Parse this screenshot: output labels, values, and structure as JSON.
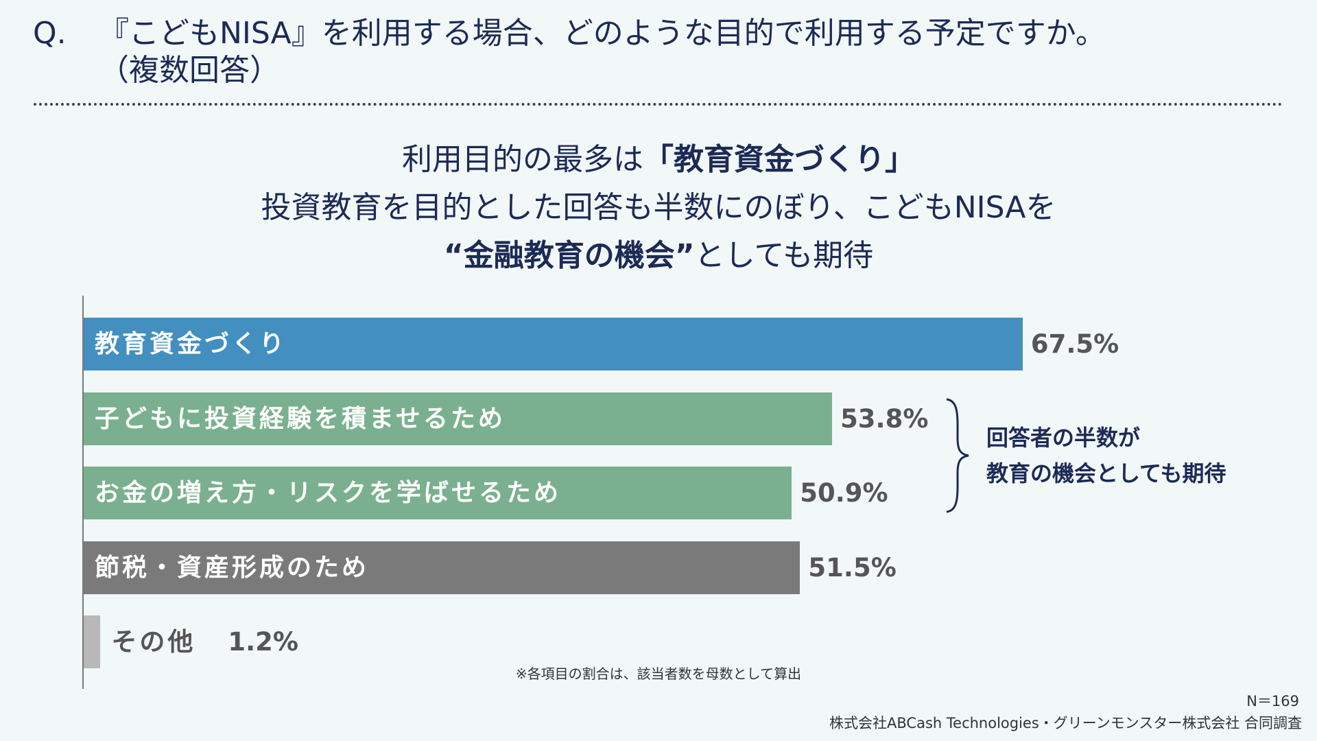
{
  "question": {
    "prefix": "Q.",
    "line1": "『こどもNISA』を利用する場合、どのような目的で利用する予定ですか。",
    "line2": "（複数回答）"
  },
  "headline": {
    "line1_pre": "利用目的の最多は",
    "line1_bold": "「教育資金づくり」",
    "line2": "投資教育を目的とした回答も半数にのぼり、こどもNISAを",
    "line3_bold": "“金融教育の機会”",
    "line3_post": "としても期待"
  },
  "chart_data": {
    "type": "bar",
    "orientation": "horizontal",
    "categories": [
      "教育資金づくり",
      "子どもに投資経験を積ませるため",
      "お金の増え方・リスクを学ばせるため",
      "節税・資産形成のため",
      "その他"
    ],
    "values": [
      67.5,
      53.8,
      50.9,
      51.5,
      1.2
    ],
    "value_labels": [
      "67.5%",
      "53.8%",
      "50.9%",
      "51.5%",
      "1.2%"
    ],
    "colors": [
      "#428fc0",
      "#7ab08f",
      "#7ab08f",
      "#7a7a7a",
      "#b8b8b8"
    ],
    "unit": "%",
    "xlim": [
      0,
      100
    ],
    "grid": false
  },
  "callout": {
    "line1": "回答者の半数が",
    "line2": "教育の機会としても期待"
  },
  "note": "※各項目の割合は、該当者数を母数として算出",
  "sample_size": "N＝169",
  "credit": "株式会社ABCash Technologies・グリーンモンスター株式会社 合同調査"
}
